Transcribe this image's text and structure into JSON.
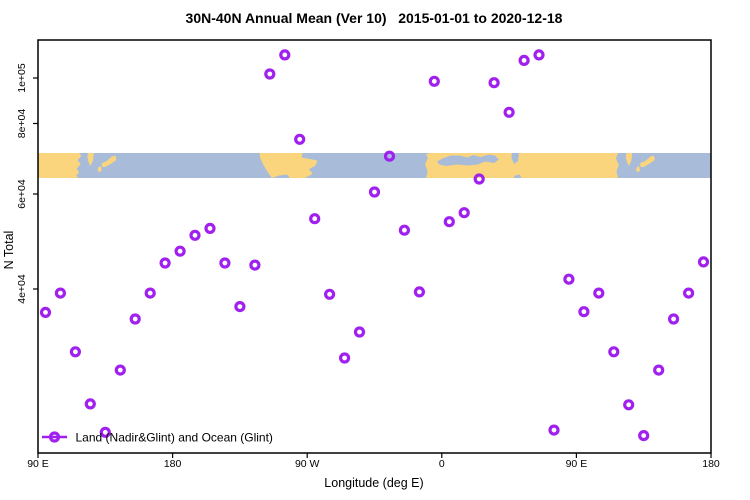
{
  "chart_data": {
    "type": "scatter",
    "title": "30N-40N Annual Mean (Ver 10)   2015-01-01 to 2020-12-18",
    "xlabel": "Longitude (deg E)",
    "ylabel": "N Total",
    "x_axis": {
      "min": 90,
      "max": 540,
      "ticks": [
        {
          "lon": 90,
          "label": "90 E"
        },
        {
          "lon": 180,
          "label": "180"
        },
        {
          "lon": 270,
          "label": "90 W"
        },
        {
          "lon": 360,
          "label": "0"
        },
        {
          "lon": 450,
          "label": "90 E"
        },
        {
          "lon": 540,
          "label": "180"
        }
      ]
    },
    "y_axis": {
      "scale": "log",
      "ticks": [
        {
          "value": 100000,
          "label": "1e+05"
        },
        {
          "value": 80000,
          "label": "8e+04"
        },
        {
          "value": 60000,
          "label": "6e+04"
        },
        {
          "value": 40000,
          "label": "4e+04"
        }
      ]
    },
    "legend": {
      "label": "Land (Nadir&Glint) and Ocean (Glint)",
      "position": "bottom-left"
    },
    "series": [
      {
        "name": "Land (Nadir&Glint) and Ocean (Glint)",
        "marker": "open-circle",
        "color": "#a020f0",
        "points": [
          [
            95,
            36200
          ],
          [
            105,
            39300
          ],
          [
            115,
            30600
          ],
          [
            125,
            24500
          ],
          [
            135,
            21700
          ],
          [
            145,
            28300
          ],
          [
            155,
            35200
          ],
          [
            165,
            39300
          ],
          [
            175,
            44700
          ],
          [
            185,
            47000
          ],
          [
            195,
            50300
          ],
          [
            205,
            51800
          ],
          [
            215,
            44700
          ],
          [
            225,
            37100
          ],
          [
            235,
            44300
          ],
          [
            245,
            102000
          ],
          [
            255,
            112000
          ],
          [
            265,
            75000
          ],
          [
            275,
            54000
          ],
          [
            285,
            39100
          ],
          [
            295,
            29800
          ],
          [
            305,
            33300
          ],
          [
            315,
            60500
          ],
          [
            325,
            70000
          ],
          [
            335,
            51400
          ],
          [
            345,
            39500
          ],
          [
            355,
            98400
          ],
          [
            365,
            53300
          ],
          [
            375,
            55400
          ],
          [
            385,
            63800
          ],
          [
            395,
            97700
          ],
          [
            405,
            84500
          ],
          [
            415,
            109000
          ],
          [
            425,
            112000
          ],
          [
            435,
            21900
          ],
          [
            445,
            41700
          ],
          [
            455,
            36300
          ],
          [
            465,
            39300
          ],
          [
            475,
            30600
          ],
          [
            485,
            24400
          ],
          [
            495,
            21400
          ],
          [
            505,
            28300
          ],
          [
            515,
            35200
          ],
          [
            525,
            39300
          ],
          [
            535,
            44900
          ]
        ]
      }
    ],
    "map_band": {
      "description": "30N-40N latitude world-map strip",
      "ocean_color": "#a8bcd9",
      "land_color": "#fbd57d",
      "land_shapes": [
        {
          "name": "asia-east",
          "pts": [
            [
              90,
              0
            ],
            [
              117.5,
              0
            ],
            [
              119,
              0.12
            ],
            [
              116.5,
              0.28
            ],
            [
              118.5,
              0.45
            ],
            [
              115.8,
              0.62
            ],
            [
              117.5,
              0.78
            ],
            [
              115.5,
              0.9
            ],
            [
              116.8,
              1
            ],
            [
              90,
              1
            ]
          ]
        },
        {
          "name": "korea",
          "pts": [
            [
              123.5,
              0
            ],
            [
              127.3,
              0
            ],
            [
              126.8,
              0.3
            ],
            [
              125.2,
              0.52
            ],
            [
              123.8,
              0.36
            ],
            [
              123,
              0.14
            ]
          ]
        },
        {
          "name": "japan-west",
          "pts": [
            [
              129.8,
              0.6
            ],
            [
              131.9,
              0.52
            ],
            [
              132.6,
              0.7
            ],
            [
              130.5,
              0.78
            ]
          ]
        },
        {
          "name": "japan-honshu",
          "pts": [
            [
              132.5,
              0.42
            ],
            [
              136.5,
              0.3
            ],
            [
              139.5,
              0.14
            ],
            [
              141.8,
              0.1
            ],
            [
              142.4,
              0.28
            ],
            [
              138.5,
              0.44
            ],
            [
              135,
              0.56
            ],
            [
              133,
              0.56
            ]
          ]
        },
        {
          "name": "north-america",
          "pts": [
            [
              238.3,
              0
            ],
            [
              266.8,
              0
            ],
            [
              266.4,
              0.18
            ],
            [
              276.8,
              0.3
            ],
            [
              275.3,
              0.52
            ],
            [
              271.3,
              0.64
            ],
            [
              273.6,
              0.84
            ],
            [
              268.3,
              1
            ],
            [
              258.4,
              1
            ],
            [
              256.4,
              0.86
            ],
            [
              251.4,
              0.9
            ],
            [
              246.4,
              1
            ],
            [
              243.6,
              0.76
            ],
            [
              240.6,
              0.46
            ],
            [
              238.3,
              0.16
            ]
          ]
        },
        {
          "name": "africa-eurasia",
          "pts": [
            [
              352,
              0
            ],
            [
              477.8,
              0
            ],
            [
              476.4,
              0.22
            ],
            [
              478.4,
              0.48
            ],
            [
              476.8,
              0.72
            ],
            [
              477.8,
              1
            ],
            [
              349.6,
              1
            ],
            [
              350.6,
              0.72
            ],
            [
              348.8,
              0.46
            ],
            [
              350.8,
              0.2
            ],
            [
              349.3,
              0.06
            ]
          ]
        },
        {
          "name": "sicily",
          "pts": [
            [
              374.3,
              0.28
            ],
            [
              376.3,
              0.26
            ],
            [
              375.9,
              0.4
            ],
            [
              374.1,
              0.38
            ]
          ]
        },
        {
          "name": "crete",
          "pts": [
            [
              383.5,
              0.44
            ],
            [
              385.8,
              0.42
            ],
            [
              385.4,
              0.52
            ],
            [
              383.3,
              0.5
            ]
          ]
        },
        {
          "name": "korea-2",
          "pts": [
            [
              483.5,
              0
            ],
            [
              487.3,
              0
            ],
            [
              486.8,
              0.3
            ],
            [
              485.2,
              0.52
            ],
            [
              483.8,
              0.36
            ],
            [
              483,
              0.14
            ]
          ]
        },
        {
          "name": "japan-west-2",
          "pts": [
            [
              489.8,
              0.6
            ],
            [
              491.9,
              0.52
            ],
            [
              492.6,
              0.7
            ],
            [
              490.5,
              0.78
            ]
          ]
        },
        {
          "name": "japan-honshu-2",
          "pts": [
            [
              492.5,
              0.42
            ],
            [
              496.5,
              0.3
            ],
            [
              499.5,
              0.14
            ],
            [
              501.8,
              0.1
            ],
            [
              502.4,
              0.28
            ],
            [
              498.5,
              0.44
            ],
            [
              495,
              0.56
            ],
            [
              493,
              0.56
            ]
          ]
        }
      ],
      "ocean_patches": [
        {
          "name": "mediterranean",
          "pts": [
            [
              356.8,
              0.34
            ],
            [
              361,
              0.2
            ],
            [
              366,
              0.1
            ],
            [
              372,
              0.1
            ],
            [
              377,
              0.18
            ],
            [
              381,
              0.08
            ],
            [
              386,
              0.16
            ],
            [
              391,
              0.06
            ],
            [
              395.6,
              0.1
            ],
            [
              398.2,
              0.26
            ],
            [
              395,
              0.4
            ],
            [
              389,
              0.34
            ],
            [
              384,
              0.46
            ],
            [
              377.5,
              0.5
            ],
            [
              370,
              0.46
            ],
            [
              363,
              0.52
            ],
            [
              358.3,
              0.46
            ]
          ]
        },
        {
          "name": "caspian-sea",
          "pts": [
            [
              406.8,
              0
            ],
            [
              411.6,
              0
            ],
            [
              411,
              0.32
            ],
            [
              408.4,
              0.44
            ],
            [
              406.6,
              0.22
            ]
          ]
        },
        {
          "name": "persian-gulf",
          "pts": [
            [
              408,
              1
            ],
            [
              413.5,
              1
            ],
            [
              411.8,
              0.86
            ],
            [
              408.8,
              0.9
            ]
          ]
        }
      ]
    }
  },
  "colors": {
    "point": "#a020f0",
    "land": "#fbd57d",
    "ocean": "#a8bcd9",
    "axis": "#000000",
    "background": "#ffffff"
  }
}
